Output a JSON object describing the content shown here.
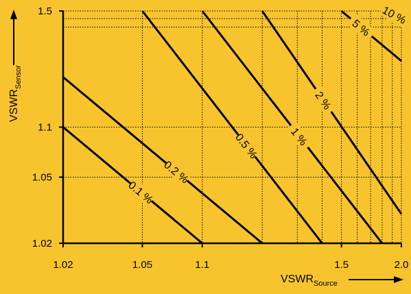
{
  "chart_data": {
    "type": "line",
    "title": "",
    "xlabel": "VSWR",
    "xlabel_sub": "Source",
    "ylabel": "VSWR",
    "ylabel_sub": "Sensor",
    "xscale": "log(VSWR-1)",
    "yscale": "log(VSWR-1)",
    "xlim": [
      1.02,
      2.0
    ],
    "ylim": [
      1.02,
      1.5
    ],
    "x_ticks": [
      {
        "value": 1.02,
        "label": "1.02"
      },
      {
        "value": 1.05,
        "label": "1.05"
      },
      {
        "value": 1.1,
        "label": "1.1"
      },
      {
        "value": 1.5,
        "label": "1.5"
      },
      {
        "value": 2.0,
        "label": "2.0"
      }
    ],
    "y_ticks": [
      {
        "value": 1.02,
        "label": "1.02"
      },
      {
        "value": 1.05,
        "label": "1.05"
      },
      {
        "value": 1.1,
        "label": "1.1"
      },
      {
        "value": 1.5,
        "label": "1.5"
      }
    ],
    "x_minor_grid": [
      1.2,
      1.3,
      1.4,
      1.6,
      1.7,
      1.8,
      1.9
    ],
    "y_minor_grid": [
      1.4,
      1.45
    ],
    "grid": true,
    "grid_style": "dotted",
    "series": [
      {
        "label": "0.1 %",
        "x": [
          1.02,
          1.1
        ],
        "y": [
          1.1,
          1.02
        ]
      },
      {
        "label": "0.2 %",
        "x": [
          1.02,
          1.2
        ],
        "y": [
          1.2,
          1.02
        ]
      },
      {
        "label": "0.5 %",
        "x": [
          1.05,
          1.4
        ],
        "y": [
          1.5,
          1.02
        ]
      },
      {
        "label": "1 %",
        "x": [
          1.1,
          1.8
        ],
        "y": [
          1.5,
          1.02
        ]
      },
      {
        "label": "2 %",
        "x": [
          1.2,
          2.0
        ],
        "y": [
          1.5,
          1.03
        ]
      },
      {
        "label": "5 %",
        "x": [
          1.5,
          2.0
        ],
        "y": [
          1.5,
          1.25
        ]
      },
      {
        "label": "10 %",
        "x": [
          1.85,
          2.0
        ],
        "y": [
          1.5,
          1.45
        ]
      }
    ],
    "colors": {
      "background": "#f8c42e",
      "ink": "#000000"
    }
  }
}
